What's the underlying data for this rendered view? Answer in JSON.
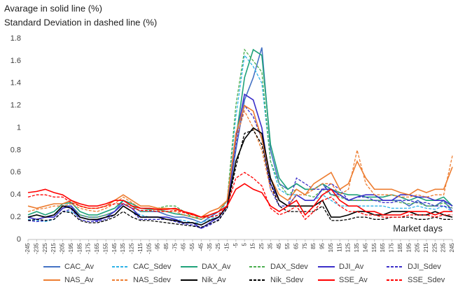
{
  "chart_data": {
    "type": "line",
    "title": "Avarage in solid line (%)",
    "subtitle": "Standard Deviation in dashed line (%)",
    "annotation": "Market days",
    "x": [
      -245,
      -235,
      -225,
      -215,
      -205,
      -195,
      -185,
      -175,
      -165,
      -155,
      -145,
      -135,
      -125,
      -115,
      -105,
      -95,
      -85,
      -75,
      -65,
      -55,
      -45,
      -35,
      -25,
      -15,
      -5,
      5,
      15,
      25,
      35,
      45,
      55,
      65,
      75,
      85,
      95,
      105,
      115,
      125,
      135,
      145,
      155,
      165,
      175,
      185,
      195,
      205,
      215,
      225,
      235,
      245
    ],
    "xlim": [
      -245,
      245
    ],
    "xticks": [
      -245,
      -235,
      -225,
      -215,
      -205,
      -195,
      -185,
      -175,
      -165,
      -155,
      -145,
      -135,
      -125,
      -115,
      -105,
      -95,
      -85,
      -75,
      -65,
      -55,
      -45,
      -35,
      -25,
      -15,
      -5,
      5,
      15,
      25,
      35,
      45,
      55,
      65,
      75,
      85,
      95,
      105,
      115,
      125,
      135,
      145,
      155,
      165,
      175,
      185,
      195,
      205,
      215,
      225,
      235,
      245
    ],
    "ylim": [
      0,
      1.8
    ],
    "yticks": [
      0,
      0.2,
      0.4,
      0.6,
      0.8,
      1,
      1.2,
      1.4,
      1.6,
      1.8
    ],
    "grid": false,
    "legend": "bottom",
    "series": [
      {
        "name": "CAC_Av",
        "color": "#4472c4",
        "dashed": false,
        "values": [
          0.2,
          0.22,
          0.2,
          0.22,
          0.3,
          0.3,
          0.22,
          0.2,
          0.2,
          0.22,
          0.25,
          0.35,
          0.3,
          0.25,
          0.25,
          0.25,
          0.22,
          0.2,
          0.2,
          0.18,
          0.15,
          0.2,
          0.25,
          0.3,
          0.8,
          1.25,
          1.45,
          1.72,
          0.8,
          0.5,
          0.45,
          0.5,
          0.45,
          0.45,
          0.5,
          0.4,
          0.4,
          0.35,
          0.35,
          0.35,
          0.35,
          0.35,
          0.35,
          0.35,
          0.3,
          0.35,
          0.3,
          0.3,
          0.35,
          0.25
        ]
      },
      {
        "name": "CAC_Sdev",
        "color": "#2eb3e8",
        "dashed": true,
        "values": [
          0.18,
          0.17,
          0.16,
          0.18,
          0.25,
          0.25,
          0.2,
          0.18,
          0.17,
          0.2,
          0.22,
          0.3,
          0.25,
          0.22,
          0.2,
          0.2,
          0.2,
          0.18,
          0.17,
          0.15,
          0.15,
          0.18,
          0.22,
          0.35,
          1.1,
          1.65,
          1.55,
          1.4,
          0.7,
          0.45,
          0.4,
          0.4,
          0.35,
          0.35,
          0.4,
          0.35,
          0.3,
          0.3,
          0.3,
          0.3,
          0.3,
          0.3,
          0.28,
          0.28,
          0.28,
          0.3,
          0.28,
          0.27,
          0.3,
          0.25
        ]
      },
      {
        "name": "DAX_Av",
        "color": "#1fa27a",
        "dashed": false,
        "values": [
          0.22,
          0.25,
          0.22,
          0.25,
          0.32,
          0.33,
          0.25,
          0.22,
          0.22,
          0.25,
          0.28,
          0.35,
          0.32,
          0.28,
          0.27,
          0.27,
          0.25,
          0.23,
          0.22,
          0.2,
          0.18,
          0.22,
          0.25,
          0.35,
          0.9,
          1.45,
          1.7,
          1.65,
          0.85,
          0.55,
          0.45,
          0.5,
          0.45,
          0.45,
          0.5,
          0.45,
          0.42,
          0.4,
          0.4,
          0.38,
          0.38,
          0.38,
          0.4,
          0.38,
          0.35,
          0.38,
          0.35,
          0.35,
          0.38,
          0.3
        ]
      },
      {
        "name": "DAX_Sdev",
        "color": "#4caf50",
        "dashed": true,
        "values": [
          0.2,
          0.22,
          0.2,
          0.22,
          0.28,
          0.3,
          0.22,
          0.2,
          0.2,
          0.22,
          0.25,
          0.32,
          0.3,
          0.25,
          0.25,
          0.28,
          0.3,
          0.3,
          0.25,
          0.2,
          0.2,
          0.22,
          0.25,
          0.35,
          1.2,
          1.7,
          1.6,
          1.5,
          0.7,
          0.5,
          0.4,
          0.45,
          0.4,
          0.38,
          0.45,
          0.4,
          0.38,
          0.35,
          0.35,
          0.35,
          0.35,
          0.35,
          0.35,
          0.33,
          0.32,
          0.33,
          0.3,
          0.3,
          0.33,
          0.28
        ]
      },
      {
        "name": "DJI_Av",
        "color": "#3b2fc9",
        "dashed": false,
        "values": [
          0.2,
          0.18,
          0.2,
          0.2,
          0.28,
          0.3,
          0.2,
          0.18,
          0.17,
          0.2,
          0.25,
          0.32,
          0.28,
          0.2,
          0.2,
          0.2,
          0.2,
          0.18,
          0.15,
          0.15,
          0.1,
          0.15,
          0.2,
          0.3,
          0.9,
          1.3,
          1.25,
          1.0,
          0.5,
          0.35,
          0.3,
          0.4,
          0.35,
          0.35,
          0.45,
          0.45,
          0.4,
          0.35,
          0.38,
          0.4,
          0.4,
          0.35,
          0.35,
          0.4,
          0.4,
          0.38,
          0.38,
          0.35,
          0.35,
          0.3
        ]
      },
      {
        "name": "DJI_Sdev",
        "color": "#3b2fc9",
        "dashed": true,
        "values": [
          0.17,
          0.16,
          0.17,
          0.18,
          0.25,
          0.27,
          0.18,
          0.16,
          0.16,
          0.18,
          0.22,
          0.3,
          0.25,
          0.18,
          0.18,
          0.18,
          0.18,
          0.16,
          0.14,
          0.13,
          0.1,
          0.13,
          0.18,
          0.28,
          0.85,
          1.2,
          1.1,
          0.9,
          0.45,
          0.3,
          0.3,
          0.55,
          0.5,
          0.45,
          0.45,
          0.5,
          0.45,
          0.35,
          0.38,
          0.38,
          0.35,
          0.33,
          0.33,
          0.35,
          0.35,
          0.33,
          0.33,
          0.3,
          0.3,
          0.28
        ]
      },
      {
        "name": "NAS_Av",
        "color": "#ed7d31",
        "dashed": false,
        "values": [
          0.3,
          0.28,
          0.3,
          0.32,
          0.32,
          0.35,
          0.3,
          0.28,
          0.28,
          0.3,
          0.35,
          0.4,
          0.35,
          0.3,
          0.3,
          0.28,
          0.28,
          0.27,
          0.25,
          0.22,
          0.2,
          0.25,
          0.28,
          0.35,
          0.95,
          1.2,
          1.15,
          0.9,
          0.55,
          0.4,
          0.35,
          0.45,
          0.4,
          0.5,
          0.55,
          0.6,
          0.45,
          0.5,
          0.7,
          0.55,
          0.45,
          0.45,
          0.45,
          0.42,
          0.4,
          0.45,
          0.42,
          0.45,
          0.45,
          0.65
        ]
      },
      {
        "name": "NAS_Sdev",
        "color": "#ed7d31",
        "dashed": true,
        "values": [
          0.25,
          0.27,
          0.28,
          0.3,
          0.3,
          0.32,
          0.28,
          0.26,
          0.25,
          0.28,
          0.32,
          0.38,
          0.33,
          0.28,
          0.28,
          0.26,
          0.25,
          0.25,
          0.22,
          0.2,
          0.18,
          0.22,
          0.25,
          0.35,
          0.9,
          1.15,
          1.0,
          0.8,
          0.45,
          0.35,
          0.3,
          0.4,
          0.4,
          0.45,
          0.5,
          0.5,
          0.4,
          0.45,
          0.8,
          0.5,
          0.4,
          0.4,
          0.4,
          0.38,
          0.38,
          0.4,
          0.38,
          0.4,
          0.4,
          0.75
        ]
      },
      {
        "name": "Nik_Av",
        "color": "#000000",
        "dashed": false,
        "values": [
          0.2,
          0.22,
          0.2,
          0.22,
          0.3,
          0.28,
          0.2,
          0.18,
          0.18,
          0.2,
          0.22,
          0.3,
          0.25,
          0.2,
          0.2,
          0.2,
          0.18,
          0.17,
          0.15,
          0.15,
          0.13,
          0.17,
          0.2,
          0.3,
          0.7,
          0.9,
          1.0,
          0.95,
          0.55,
          0.35,
          0.3,
          0.3,
          0.3,
          0.3,
          0.35,
          0.2,
          0.2,
          0.22,
          0.25,
          0.25,
          0.22,
          0.22,
          0.25,
          0.25,
          0.25,
          0.22,
          0.22,
          0.25,
          0.22,
          0.2
        ]
      },
      {
        "name": "Nik_Sdev",
        "color": "#000000",
        "dashed": true,
        "values": [
          0.17,
          0.18,
          0.17,
          0.18,
          0.25,
          0.24,
          0.17,
          0.15,
          0.15,
          0.17,
          0.2,
          0.25,
          0.2,
          0.17,
          0.17,
          0.16,
          0.15,
          0.14,
          0.13,
          0.12,
          0.11,
          0.14,
          0.17,
          0.28,
          0.65,
          0.95,
          0.98,
          0.85,
          0.5,
          0.3,
          0.25,
          0.25,
          0.25,
          0.25,
          0.3,
          0.17,
          0.17,
          0.18,
          0.2,
          0.2,
          0.18,
          0.18,
          0.2,
          0.2,
          0.2,
          0.18,
          0.18,
          0.2,
          0.18,
          0.18
        ]
      },
      {
        "name": "SSE_Av",
        "color": "#ff0000",
        "dashed": false,
        "values": [
          0.42,
          0.43,
          0.45,
          0.42,
          0.4,
          0.35,
          0.32,
          0.3,
          0.3,
          0.32,
          0.35,
          0.35,
          0.3,
          0.28,
          0.28,
          0.27,
          0.27,
          0.28,
          0.25,
          0.23,
          0.2,
          0.22,
          0.25,
          0.3,
          0.45,
          0.5,
          0.45,
          0.42,
          0.3,
          0.25,
          0.3,
          0.35,
          0.22,
          0.3,
          0.4,
          0.45,
          0.35,
          0.3,
          0.3,
          0.25,
          0.25,
          0.22,
          0.22,
          0.22,
          0.25,
          0.25,
          0.25,
          0.22,
          0.25,
          0.25
        ]
      },
      {
        "name": "SSE_Sdev",
        "color": "#ff0000",
        "dashed": true,
        "values": [
          0.38,
          0.4,
          0.4,
          0.38,
          0.38,
          0.33,
          0.3,
          0.28,
          0.28,
          0.3,
          0.32,
          0.32,
          0.28,
          0.26,
          0.26,
          0.25,
          0.25,
          0.26,
          0.24,
          0.22,
          0.2,
          0.2,
          0.22,
          0.3,
          0.55,
          0.6,
          0.55,
          0.48,
          0.28,
          0.22,
          0.25,
          0.3,
          0.18,
          0.25,
          0.35,
          0.38,
          0.3,
          0.25,
          0.25,
          0.22,
          0.22,
          0.2,
          0.2,
          0.2,
          0.22,
          0.22,
          0.22,
          0.2,
          0.22,
          0.22
        ]
      }
    ]
  }
}
